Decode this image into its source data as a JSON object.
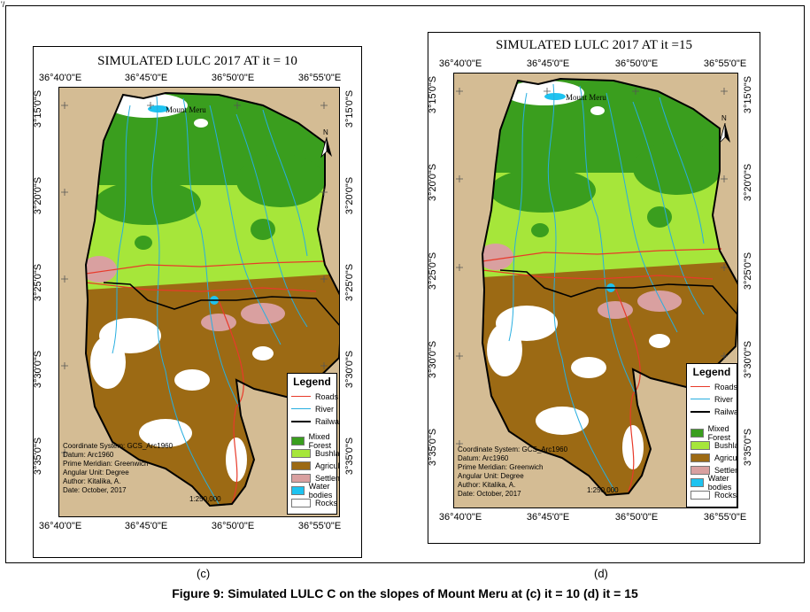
{
  "corner_mark": "'/",
  "figure_caption": "Figure 9: Simulated LULC C on the slopes of Mount Meru at (c) it = 10 (d) it = 15",
  "panels": [
    {
      "id": "c",
      "title": "SIMULATED LULC 2017 AT it = 10",
      "caption_letter": "(c)",
      "lon_labels": [
        "36°40'0\"E",
        "36°45'0\"E",
        "36°50'0\"E",
        "36°55'0\"E"
      ],
      "lat_labels": [
        "3°15'0\"S",
        "3°20'0\"S",
        "3°25'0\"S",
        "3°30'0\"S",
        "3°35'0\"S"
      ],
      "place_label": "Mount Meru",
      "north_label": "N",
      "scale": "1:250,000"
    },
    {
      "id": "d",
      "title": "SIMULATED LULC 2017 AT  it =15",
      "caption_letter": "(d)",
      "lon_labels": [
        "36°40'0\"E",
        "36°45'0\"E",
        "36°50'0\"E",
        "36°55'0\"E"
      ],
      "lat_labels": [
        "3°15'0\"S",
        "3°20'0\"S",
        "3°25'0\"S",
        "3°30'0\"S",
        "3°35'0\"S"
      ],
      "place_label": "Mount Meru",
      "north_label": "N",
      "scale": "1:250,000"
    }
  ],
  "legend": {
    "title": "Legend",
    "lines": [
      {
        "label": "Roads",
        "color": "#e83a2a"
      },
      {
        "label": "River",
        "color": "#27aee0"
      },
      {
        "label": "Railway",
        "color": "#000000"
      }
    ],
    "classes": [
      {
        "label": "Mixed Forest",
        "color": "#3a9e1e"
      },
      {
        "label": "Bushland",
        "color": "#a6e63a"
      },
      {
        "label": "Agriculture",
        "color": "#9c6a14"
      },
      {
        "label": "Settlements",
        "color": "#d9a0a0"
      },
      {
        "label": "Water bodies",
        "color": "#1ec3f0"
      },
      {
        "label": "Rocks",
        "color": "#ffffff"
      }
    ]
  },
  "metadata_lines": [
    "Coordinate System: GCS_Arc1960",
    "Datum: Arc1960",
    "Prime Meridian: Greenwich",
    "Angular Unit: Degree",
    "Author: Kitalika, A.",
    "Date: October, 2017"
  ],
  "colors": {
    "background_tan": "#d4bc94",
    "boundary": "#000000"
  }
}
